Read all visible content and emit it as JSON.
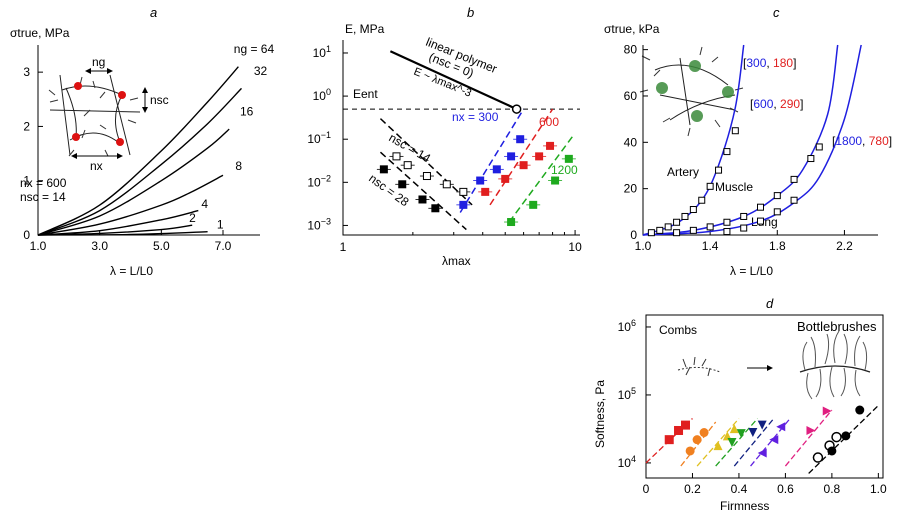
{
  "chart_data": [
    {
      "panel": "a",
      "type": "line",
      "ylabel": "σtrue, MPa",
      "xlabel": "λ = L/L0",
      "xlim": [
        1.0,
        8.2
      ],
      "ylim": [
        0,
        3.5
      ],
      "xticks": [
        "1.0",
        "3.0",
        "5.0",
        "7.0"
      ],
      "yticks": [
        "0",
        "1",
        "2",
        "3"
      ],
      "params": [
        "nx = 600",
        "nsc = 14"
      ],
      "inset_labels": {
        "ng": "ng",
        "nsc": "nsc",
        "nx": "nx"
      },
      "series": [
        {
          "name": "ng = 64",
          "label": "ng = 64",
          "x": [
            1,
            3,
            5,
            6.5,
            7.5
          ],
          "y": [
            0,
            0.55,
            1.55,
            2.45,
            3.1
          ]
        },
        {
          "name": "32",
          "label": "32",
          "x": [
            1,
            3,
            5,
            6.5,
            7.6
          ],
          "y": [
            0,
            0.45,
            1.3,
            2.05,
            2.7
          ]
        },
        {
          "name": "16",
          "label": "16",
          "x": [
            1,
            3,
            5,
            6.5,
            7.2
          ],
          "y": [
            0,
            0.35,
            1.0,
            1.6,
            1.95
          ]
        },
        {
          "name": "8",
          "label": "8",
          "x": [
            1,
            3,
            5,
            6.0,
            7.0
          ],
          "y": [
            0,
            0.2,
            0.55,
            0.8,
            1.1
          ]
        },
        {
          "name": "4",
          "label": "4",
          "x": [
            1,
            3,
            5,
            6.2
          ],
          "y": [
            0,
            0.08,
            0.28,
            0.45
          ]
        },
        {
          "name": "2",
          "label": "2",
          "x": [
            1,
            3,
            5,
            6.0
          ],
          "y": [
            0,
            0.03,
            0.1,
            0.18
          ]
        },
        {
          "name": "1",
          "label": "1",
          "x": [
            1,
            4,
            6.5
          ],
          "y": [
            0,
            0.01,
            0.06
          ]
        }
      ]
    },
    {
      "panel": "b",
      "type": "scatter",
      "ylabel": "E, MPa",
      "xlabel": "λmax",
      "xscale": "log",
      "yscale": "log",
      "xlim": [
        1,
        10.5
      ],
      "ylim": [
        0.0006,
        20
      ],
      "xticks": [
        "1",
        "10"
      ],
      "yticks": [
        "10^1",
        "10^0",
        "10^-1",
        "10^-2",
        "10^-3"
      ],
      "E_ent_label": "Eent",
      "E_ent": 0.5,
      "linear_polymer_label": [
        "linear polymer",
        "(nsc = 0)"
      ],
      "scaling_label": "E ~ λmax^-3",
      "linear_line": {
        "x": [
          1.6,
          5.6
        ],
        "y": [
          11,
          0.5
        ]
      },
      "series": [
        {
          "name": "nsc = 14",
          "color": "#000000",
          "filled": false,
          "x": [
            1.7,
            1.9,
            2.3,
            2.8,
            3.3
          ],
          "y": [
            0.04,
            0.025,
            0.014,
            0.009,
            0.006
          ]
        },
        {
          "name": "nsc = 28",
          "color": "#000000",
          "filled": true,
          "x": [
            1.5,
            1.8,
            2.2,
            2.5
          ],
          "y": [
            0.02,
            0.009,
            0.004,
            0.0025
          ]
        },
        {
          "name": "nx = 300",
          "color": "#1f1fe0",
          "filled": true,
          "x": [
            3.3,
            3.9,
            4.6,
            5.3,
            5.8
          ],
          "y": [
            0.003,
            0.011,
            0.02,
            0.04,
            0.1
          ]
        },
        {
          "name": "600",
          "color": "#e01f1f",
          "filled": true,
          "x": [
            4.1,
            5.0,
            6.0,
            7.0,
            7.8
          ],
          "y": [
            0.006,
            0.012,
            0.025,
            0.04,
            0.07
          ]
        },
        {
          "name": "1200",
          "color": "#1faa1f",
          "filled": true,
          "x": [
            5.3,
            6.6,
            8.2,
            9.4
          ],
          "y": [
            0.0012,
            0.003,
            0.011,
            0.035
          ]
        }
      ],
      "dashed_fits": [
        {
          "color": "#000000",
          "x": [
            1.45,
            3.6
          ],
          "y": [
            0.3,
            0.003
          ]
        },
        {
          "color": "#000000",
          "x": [
            1.45,
            3.4
          ],
          "y": [
            0.05,
            0.0008
          ]
        },
        {
          "color": "#1f1fe0",
          "x": [
            3.2,
            6.0
          ],
          "y": [
            0.002,
            0.5
          ]
        },
        {
          "color": "#e01f1f",
          "x": [
            4.3,
            8.0
          ],
          "y": [
            0.003,
            0.5
          ]
        },
        {
          "color": "#1faa1f",
          "x": [
            5.2,
            9.8
          ],
          "y": [
            0.0012,
            0.12
          ]
        }
      ],
      "labels": {
        "nsc14": "nsc = 14",
        "nsc28": "nsc = 28",
        "nx300": "nx = 300",
        "n600": "600",
        "n1200": "1200"
      }
    },
    {
      "panel": "c",
      "type": "scatter",
      "ylabel": "σtrue, kPa",
      "xlabel": "λ = L/L0",
      "xlim": [
        1.0,
        2.4
      ],
      "ylim": [
        0,
        82
      ],
      "xticks": [
        "1.0",
        "1.4",
        "1.8",
        "2.2"
      ],
      "yticks": [
        "0",
        "20",
        "40",
        "60",
        "80"
      ],
      "tissues": [
        {
          "name": "Artery",
          "params": {
            "a": "300",
            "b": "180"
          },
          "x": [
            1.05,
            1.1,
            1.15,
            1.2,
            1.25,
            1.3,
            1.35,
            1.4,
            1.45,
            1.5,
            1.55
          ],
          "y": [
            1,
            2,
            3.5,
            5.5,
            8,
            11,
            15,
            21,
            28,
            36,
            45
          ]
        },
        {
          "name": "Muscle",
          "params": {
            "a": "600",
            "b": "290"
          },
          "x": [
            1.2,
            1.3,
            1.4,
            1.5,
            1.6,
            1.7,
            1.8,
            1.9,
            2.0,
            2.05
          ],
          "y": [
            1,
            2,
            3.5,
            5.5,
            8,
            12,
            17,
            24,
            33,
            38
          ]
        },
        {
          "name": "Lung",
          "params": {
            "a": "1800",
            "b": "780"
          },
          "x": [
            1.5,
            1.6,
            1.7,
            1.8,
            1.9
          ],
          "y": [
            1.5,
            3,
            6,
            10,
            15
          ]
        }
      ],
      "fits": [
        {
          "x": [
            1.0,
            1.2,
            1.35,
            1.45,
            1.55,
            1.6
          ],
          "y": [
            0,
            5,
            15,
            30,
            55,
            82
          ]
        },
        {
          "x": [
            1.0,
            1.3,
            1.6,
            1.8,
            1.95,
            2.1,
            2.16
          ],
          "y": [
            0,
            2,
            8,
            17,
            28,
            52,
            82
          ]
        },
        {
          "x": [
            1.0,
            1.4,
            1.7,
            1.9,
            2.05,
            2.2,
            2.3
          ],
          "y": [
            0,
            1.5,
            6,
            14,
            25,
            50,
            82
          ]
        }
      ],
      "param_colors": {
        "a": "#1f1fe0",
        "b": "#e01f1f"
      }
    },
    {
      "panel": "d",
      "type": "scatter",
      "ylabel": "Softness, Pa",
      "xlabel": "Firmness",
      "yscale": "log",
      "xlim": [
        0,
        1.02
      ],
      "ylim": [
        6000,
        1500000
      ],
      "xticks": [
        "0",
        "0.2",
        "0.4",
        "0.6",
        "0.8",
        "1.0"
      ],
      "yticks": [
        "10^4",
        "10^5",
        "10^6"
      ],
      "annotation_left": "Combs",
      "annotation_right": "Bottlebrushes",
      "groups": [
        {
          "color": "#e01f1f",
          "marker": "square",
          "x": [
            0.1,
            0.14,
            0.17
          ],
          "y": [
            22000,
            30000,
            36000
          ]
        },
        {
          "color": "#f08020",
          "marker": "circle",
          "x": [
            0.19,
            0.22,
            0.25
          ],
          "y": [
            15000,
            22000,
            28000
          ]
        },
        {
          "color": "#e0c020",
          "marker": "triangle",
          "x": [
            0.31,
            0.35,
            0.38
          ],
          "y": [
            18000,
            25000,
            32000
          ]
        },
        {
          "color": "#20a020",
          "marker": "triangle-down",
          "x": [
            0.37,
            0.41
          ],
          "y": [
            20000,
            27000
          ]
        },
        {
          "color": "#102080",
          "marker": "triangle-down",
          "x": [
            0.46,
            0.5
          ],
          "y": [
            28000,
            36000
          ]
        },
        {
          "color": "#6020e0",
          "marker": "triangle-left",
          "x": [
            0.5,
            0.55,
            0.58
          ],
          "y": [
            14000,
            22000,
            34000
          ]
        },
        {
          "color": "#e01f80",
          "marker": "triangle-right",
          "x": [
            0.71,
            0.78
          ],
          "y": [
            30000,
            58000
          ]
        },
        {
          "color": "#000000",
          "marker": "circle-open",
          "x": [
            0.74,
            0.79,
            0.82
          ],
          "y": [
            12000,
            18000,
            24000
          ]
        },
        {
          "color": "#000000",
          "marker": "circle",
          "x": [
            0.8,
            0.86,
            0.92
          ],
          "y": [
            15000,
            25000,
            60000
          ]
        }
      ],
      "fits": [
        {
          "color": "#e01f1f",
          "x": [
            0.0,
            0.2
          ],
          "y": [
            10000,
            45000
          ]
        },
        {
          "color": "#f08020",
          "x": [
            0.15,
            0.3
          ],
          "y": [
            9000,
            40000
          ]
        },
        {
          "color": "#e0c020",
          "x": [
            0.22,
            0.4
          ],
          "y": [
            9000,
            45000
          ]
        },
        {
          "color": "#20a020",
          "x": [
            0.3,
            0.48
          ],
          "y": [
            9000,
            45000
          ]
        },
        {
          "color": "#102080",
          "x": [
            0.38,
            0.55
          ],
          "y": [
            9000,
            45000
          ]
        },
        {
          "color": "#6020e0",
          "x": [
            0.45,
            0.62
          ],
          "y": [
            9000,
            45000
          ]
        },
        {
          "color": "#e01f80",
          "x": [
            0.6,
            0.8
          ],
          "y": [
            9000,
            60000
          ]
        },
        {
          "color": "#000000",
          "x": [
            0.7,
            1.0
          ],
          "y": [
            7000,
            70000
          ]
        }
      ]
    }
  ],
  "panel_letters": {
    "a": "a",
    "b": "b",
    "c": "c",
    "d": "d"
  }
}
